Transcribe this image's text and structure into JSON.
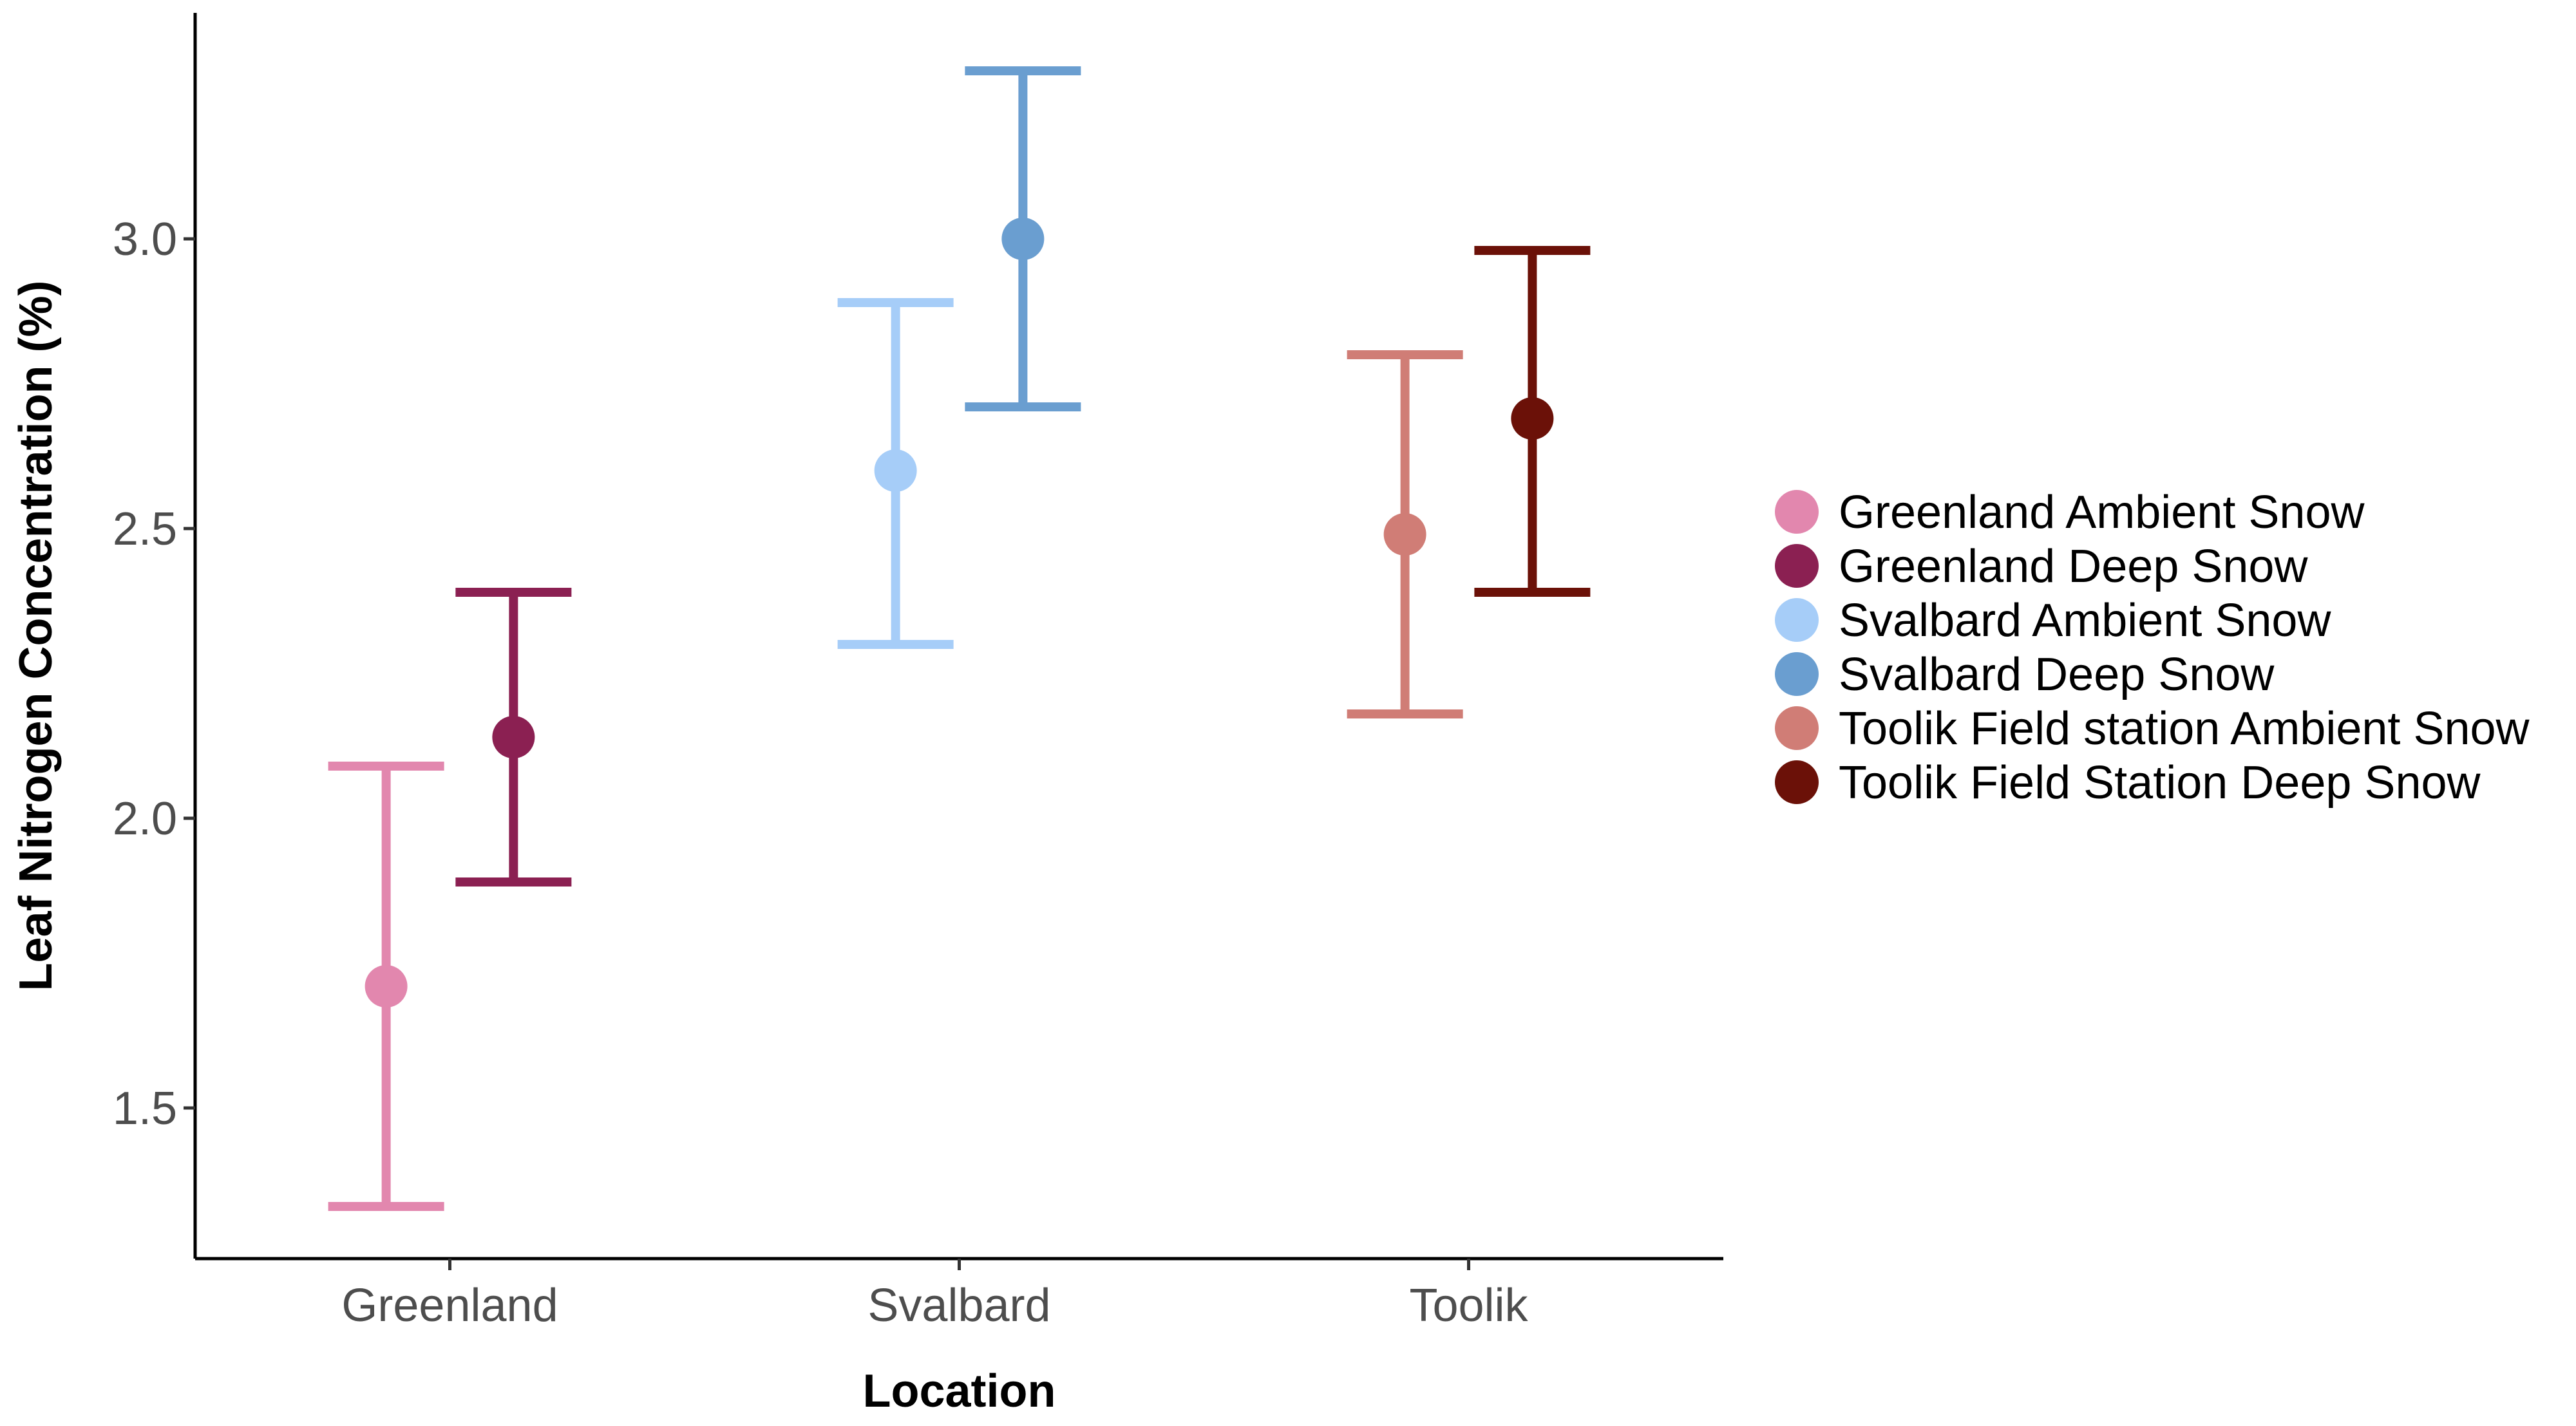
{
  "chart_data": {
    "type": "scatter",
    "xlabel": "Location",
    "ylabel": "Leaf Nitrogen Concentration (%)",
    "categories": [
      "Greenland",
      "Svalbard",
      "Toolik"
    ],
    "ylim": [
      1.24,
      3.39
    ],
    "yticks": [
      "1.5",
      "2.0",
      "2.5",
      "3.0"
    ],
    "grid": false,
    "legend_position": "right",
    "series": [
      {
        "name": "Greenland Ambient Snow",
        "category": "Greenland",
        "offset": -0.125,
        "value": 1.71,
        "lower": 1.33,
        "upper": 2.09,
        "color": "#E287AE"
      },
      {
        "name": "Greenland Deep Snow",
        "category": "Greenland",
        "offset": 0.125,
        "value": 2.14,
        "lower": 1.89,
        "upper": 2.39,
        "color": "#8B2052"
      },
      {
        "name": "Svalbard Ambient Snow",
        "category": "Svalbard",
        "offset": -0.125,
        "value": 2.6,
        "lower": 2.3,
        "upper": 2.89,
        "color": "#A6CDF8"
      },
      {
        "name": "Svalbard Deep Snow",
        "category": "Svalbard",
        "offset": 0.125,
        "value": 3.0,
        "lower": 2.71,
        "upper": 3.29,
        "color": "#6A9ED0"
      },
      {
        "name": "Toolik Field station Ambient Snow",
        "category": "Toolik",
        "offset": -0.125,
        "value": 2.49,
        "lower": 2.18,
        "upper": 2.8,
        "color": "#D07D76"
      },
      {
        "name": "Toolik Field Station Deep Snow",
        "category": "Toolik",
        "offset": 0.125,
        "value": 2.69,
        "lower": 2.39,
        "upper": 2.98,
        "color": "#6B1108"
      }
    ]
  }
}
